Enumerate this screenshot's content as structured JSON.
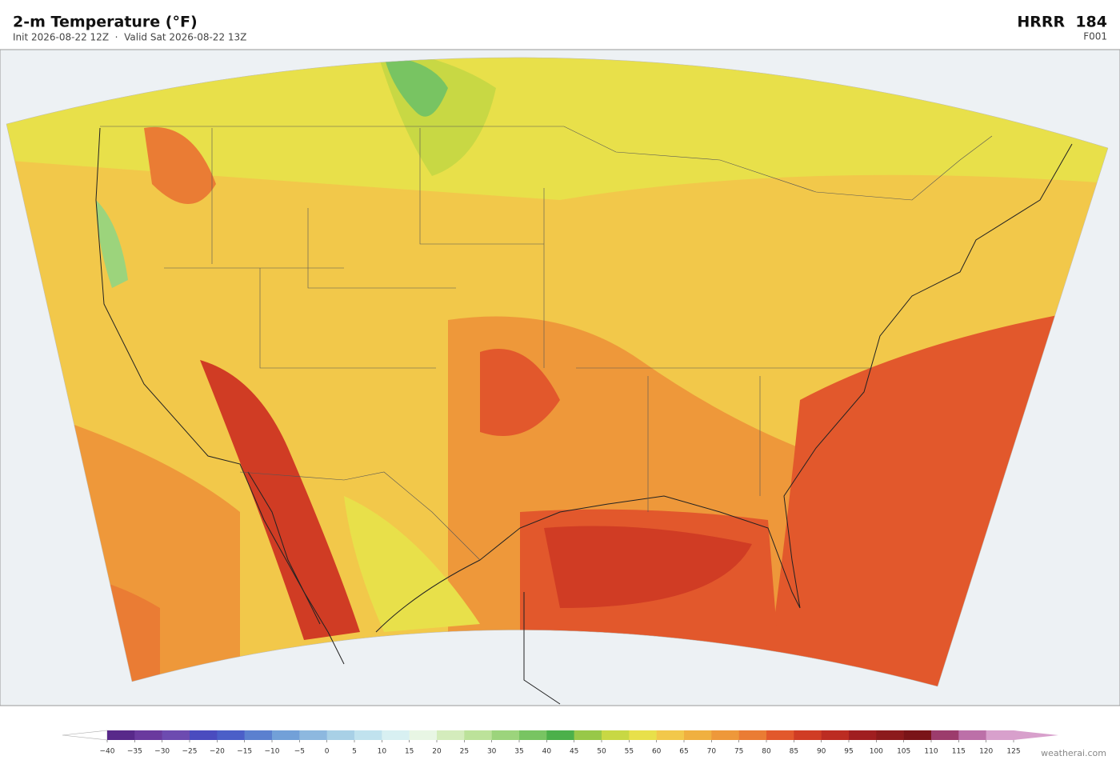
{
  "header": {
    "title": "2-m Temperature  (°F)",
    "subtitle": "Init 2026-08-22 12Z  ·  Valid Sat 2026-08-22 13Z",
    "model": "HRRR  184",
    "forecast_hour": "F001"
  },
  "colorbar": {
    "xlim": [
      -40,
      125
    ],
    "ticks": [
      {
        "value": -40,
        "label": "−40"
      },
      {
        "value": -35,
        "label": "−35"
      },
      {
        "value": -30,
        "label": "−30"
      },
      {
        "value": -25,
        "label": "−25"
      },
      {
        "value": -20,
        "label": "−20"
      },
      {
        "value": -15,
        "label": "−15"
      },
      {
        "value": -10,
        "label": "−10"
      },
      {
        "value": -5,
        "label": "−5"
      },
      0,
      5,
      10,
      15,
      20,
      25,
      30,
      35,
      40,
      45,
      50,
      55,
      60,
      65,
      70,
      75,
      80,
      85,
      90,
      95,
      100,
      105,
      110,
      115,
      120,
      125
    ],
    "colors": [
      "#58298a",
      "#6a3a9e",
      "#6d4bb0",
      "#4a4cbf",
      "#4b5fc8",
      "#5b80cf",
      "#72a0d8",
      "#8db8df",
      "#a8d0e6",
      "#c0e2ee",
      "#d8f0f2",
      "#e8f6e4",
      "#d4ecbc",
      "#bce29a",
      "#9cd47c",
      "#78c462",
      "#4cb04a",
      "#98c848",
      "#c8d844",
      "#e8e04a",
      "#f2c84a",
      "#f0b040",
      "#ee983a",
      "#ea7c34",
      "#e2582c",
      "#d03c24",
      "#bc2c22",
      "#a01e20",
      "#8c1a1c",
      "#7a1418",
      "#9c3c6c",
      "#bc70a8",
      "#d8a0cc"
    ],
    "under_color": "#ffffff",
    "over_color": "#d8a0cc"
  },
  "credit": "weatherai.com"
}
